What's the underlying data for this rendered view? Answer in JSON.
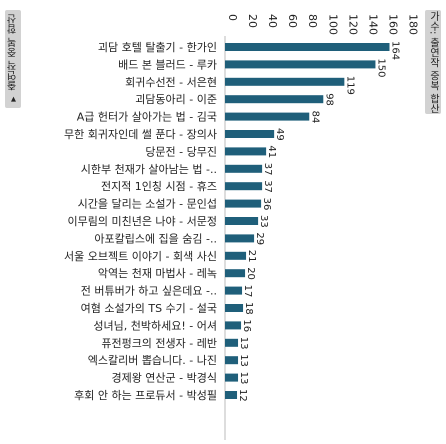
{
  "left_panel": {
    "label": "▾ 출연작 중복 합산"
  },
  "right_panel": {
    "label": "가수: 출연작 중복 합산"
  },
  "colors": {
    "bar": "#1f5f7a",
    "axis": "#bbbbbb",
    "grid": "#e6e6e6",
    "text": "#222222"
  },
  "chart_data": {
    "type": "bar",
    "orientation": "horizontal",
    "title": "",
    "xlabel": "",
    "ylabel": "",
    "xlim": [
      0,
      180
    ],
    "ticks": [
      0,
      20,
      40,
      60,
      80,
      100,
      120,
      140,
      160,
      180
    ],
    "grid": false,
    "legend": "none",
    "categories": [
      "괴담 호텔 탈출기 - 한가인",
      "배드 본 블러드 - 루카",
      "회귀수선전 - 서은현",
      "괴담동아리 - 이준",
      "A급 헌터가 살아가는 법 - 김국",
      "무한 회귀자인데 썰 푼다 - 장의사",
      "당문전 - 당무진",
      "시한부 천재가 살아남는 법 -..",
      "전지적 1인칭 시점 - 휴즈",
      "시간을 달리는 소설가 - 문인섭",
      "이무림의 미친년은 나야 - 서문정",
      "아포칼립스에 집을 숨김 -..",
      "서울 오브젝트 이야기 - 회색 사신",
      "악역는 천재 마법사 - 레녹",
      "전 버튜버가 하고 싶은데요 -..",
      "여혐 소설가의 TS 수기 - 설국",
      "성녀님, 천박하세요! - 어셔",
      "퓨전펑크의 전생자 - 레반",
      "엑스칼리버 뽑습니다. - 나진",
      "경제왕 연산군 - 박경식",
      "후회 안 하는 프로듀서 - 박성필"
    ],
    "values": [
      164,
      150,
      119,
      98,
      84,
      49,
      41,
      37,
      37,
      36,
      33,
      29,
      21,
      20,
      17,
      18,
      16,
      13,
      13,
      13,
      12
    ]
  }
}
